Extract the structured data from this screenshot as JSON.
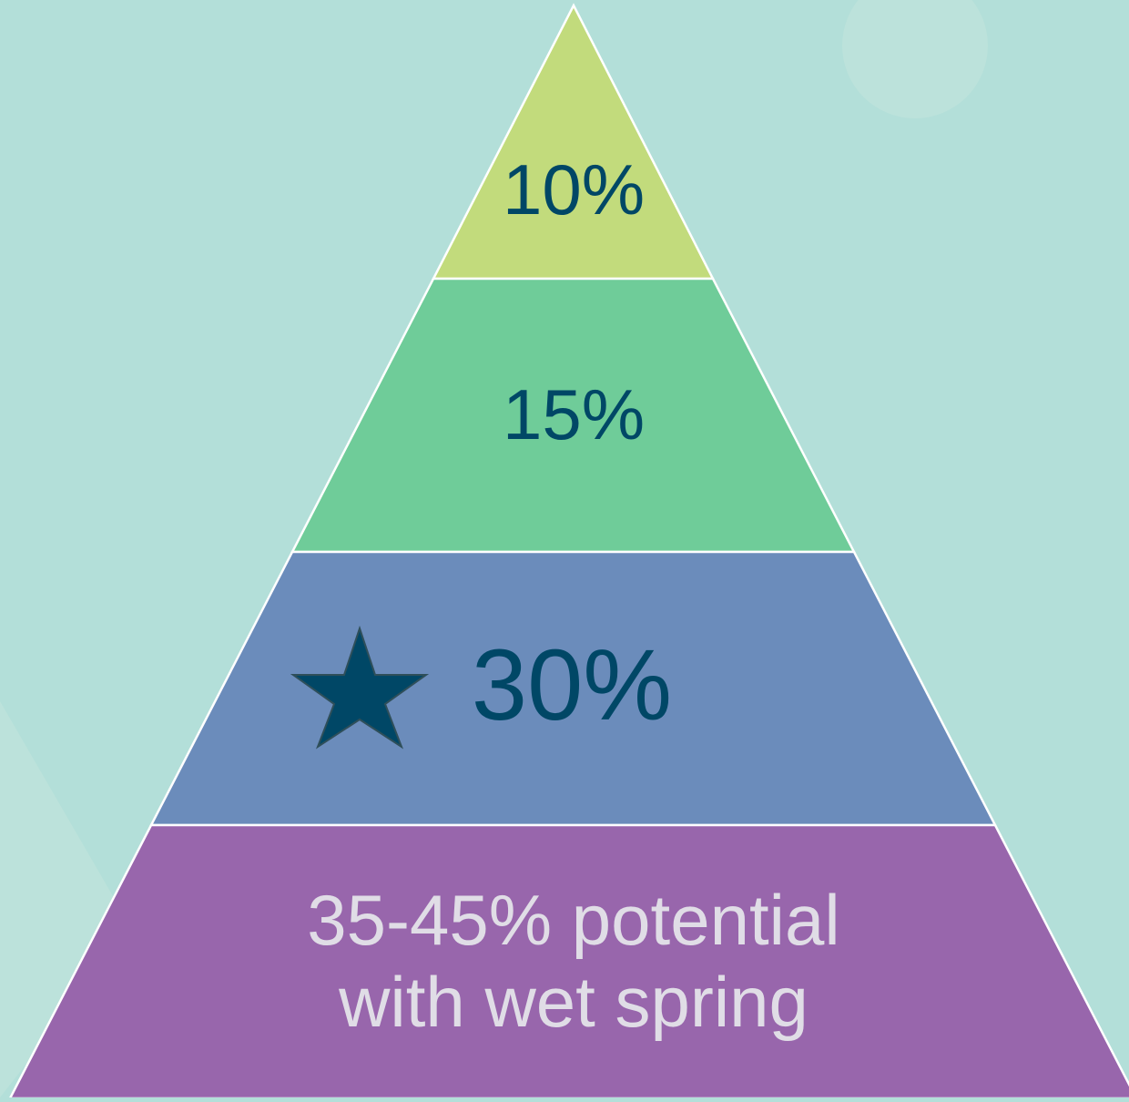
{
  "diagram": {
    "type": "pyramid",
    "tiers": [
      {
        "label_lines": [
          "10%"
        ],
        "fill": "#c2db7c",
        "text_color": "#004766",
        "has_star": false
      },
      {
        "label_lines": [
          "15%"
        ],
        "fill": "#6fcc99",
        "text_color": "#004766",
        "has_star": false
      },
      {
        "label_lines": [
          "30%"
        ],
        "fill": "#6b8cbb",
        "text_color": "#004766",
        "has_star": true
      },
      {
        "label_lines": [
          "35-45% potential",
          "with wet spring"
        ],
        "fill": "#9866ac",
        "text_color": "#e0dde6",
        "has_star": false
      }
    ],
    "star_icon": "star-icon",
    "star_color": "#004766",
    "background_color": "#b3dfd9",
    "tier_border_color": "#ffffff"
  }
}
